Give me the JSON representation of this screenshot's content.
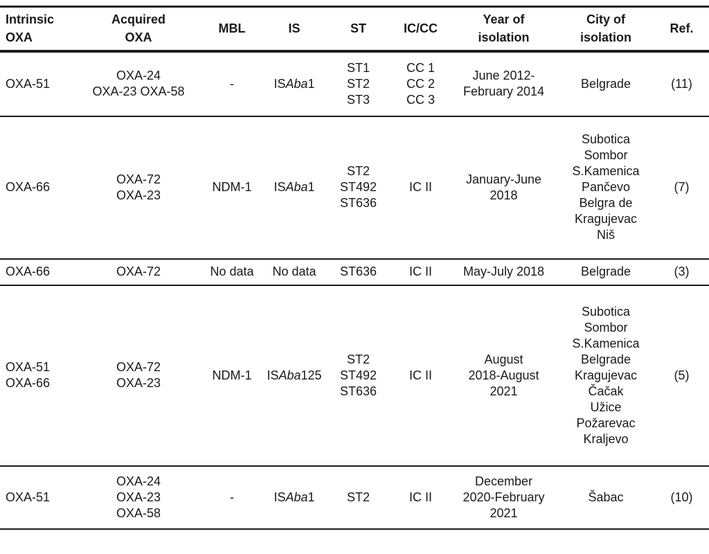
{
  "colors": {
    "text": "#1a1a1a",
    "background": "#ffffff",
    "rule": "#1a1a1a"
  },
  "table": {
    "columns": [
      {
        "key": "intrinsic_oxa",
        "label": [
          "Intrinsic",
          "OXA"
        ]
      },
      {
        "key": "acquired_oxa",
        "label": [
          "Acquired",
          "OXA"
        ]
      },
      {
        "key": "mbl",
        "label": [
          "MBL"
        ]
      },
      {
        "key": "is",
        "label": [
          "IS"
        ]
      },
      {
        "key": "st",
        "label": [
          "ST"
        ]
      },
      {
        "key": "ic_cc",
        "label": [
          "IC/CC"
        ]
      },
      {
        "key": "year",
        "label": [
          "Year of",
          "isolation"
        ]
      },
      {
        "key": "city",
        "label": [
          "City of",
          "isolation"
        ]
      },
      {
        "key": "ref",
        "label": [
          "Ref."
        ]
      }
    ],
    "rows": [
      {
        "intrinsic_oxa": [
          "OXA-51"
        ],
        "acquired_oxa": [
          "OXA-24",
          "OXA-23 OXA-58"
        ],
        "mbl": [
          "-"
        ],
        "is": [
          [
            {
              "t": "IS",
              "i": false
            },
            {
              "t": "Aba",
              "i": true
            },
            {
              "t": "1",
              "i": false
            }
          ]
        ],
        "st": [
          "ST1",
          "ST2",
          "ST3"
        ],
        "ic_cc": [
          "CC 1",
          "CC 2",
          "CC 3"
        ],
        "year": [
          "June 2012-",
          "February 2014"
        ],
        "city": [
          "Belgrade"
        ],
        "ref": [
          "(11)"
        ]
      },
      {
        "intrinsic_oxa": [
          "OXA-66"
        ],
        "acquired_oxa": [
          "OXA-72",
          "OXA-23"
        ],
        "mbl": [
          "NDM-1"
        ],
        "is": [
          [
            {
              "t": "IS",
              "i": false
            },
            {
              "t": "Aba",
              "i": true
            },
            {
              "t": "1",
              "i": false
            }
          ]
        ],
        "st": [
          "ST2",
          "ST492",
          "ST636"
        ],
        "ic_cc": [
          "IC II"
        ],
        "year": [
          "January-June",
          "2018"
        ],
        "city": [
          "Subotica",
          "Sombor",
          "S.Kamenica",
          "Pančevo",
          "Belgra de",
          "Kragujevac",
          "Niš"
        ],
        "ref": [
          "(7)"
        ]
      },
      {
        "intrinsic_oxa": [
          "OXA-66"
        ],
        "acquired_oxa": [
          "OXA-72"
        ],
        "mbl": [
          "No data"
        ],
        "is": [
          "No data"
        ],
        "st": [
          "ST636"
        ],
        "ic_cc": [
          "IC II"
        ],
        "year": [
          "May-July 2018"
        ],
        "city": [
          "Belgrade"
        ],
        "ref": [
          "(3)"
        ]
      },
      {
        "intrinsic_oxa": [
          "OXA-51",
          "OXA-66"
        ],
        "acquired_oxa": [
          "OXA-72",
          "OXA-23"
        ],
        "mbl": [
          "NDM-1"
        ],
        "is": [
          [
            {
              "t": "IS",
              "i": false
            },
            {
              "t": "Aba",
              "i": true
            },
            {
              "t": "125",
              "i": false
            }
          ]
        ],
        "st": [
          "ST2",
          "ST492",
          "ST636"
        ],
        "ic_cc": [
          "IC II"
        ],
        "year": [
          "August",
          "2018-August",
          "2021"
        ],
        "city": [
          "Subotica",
          "Sombor",
          "S.Kamenica",
          "Belgrade",
          "Kragujevac",
          "Čačak",
          "Užice",
          "Požarevac",
          "Kraljevo"
        ],
        "ref": [
          "(5)"
        ]
      },
      {
        "intrinsic_oxa": [
          "OXA-51"
        ],
        "acquired_oxa": [
          "OXA-24",
          "OXA-23",
          "OXA-58"
        ],
        "mbl": [
          "-"
        ],
        "is": [
          [
            {
              "t": "IS",
              "i": false
            },
            {
              "t": "Aba",
              "i": true
            },
            {
              "t": "1",
              "i": false
            }
          ]
        ],
        "st": [
          "ST2"
        ],
        "ic_cc": [
          "IC II"
        ],
        "year": [
          "December",
          "2020-February",
          "2021"
        ],
        "city": [
          "Šabac"
        ],
        "ref": [
          "(10)"
        ]
      }
    ]
  }
}
